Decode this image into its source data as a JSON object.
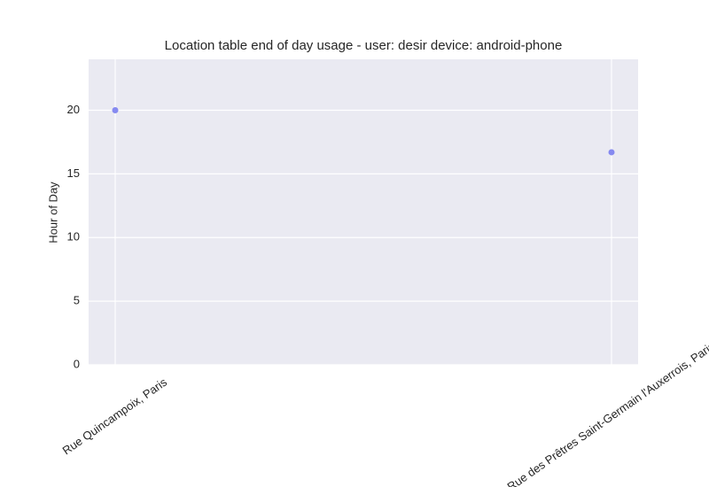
{
  "chart_data": {
    "type": "scatter",
    "title": "Location table end of day usage -  user: desir device: android-phone",
    "ylabel": "Hour of Day",
    "categories": [
      "Rue Quincampoix, Paris",
      "Rue des Prêtres Saint-Germain l'Auxerrois, Paris"
    ],
    "values": [
      20,
      16.7
    ],
    "color": "#7a7ef0",
    "ylim": [
      0,
      24
    ],
    "yticks": [
      0,
      5,
      10,
      15,
      20
    ],
    "grid": true
  }
}
